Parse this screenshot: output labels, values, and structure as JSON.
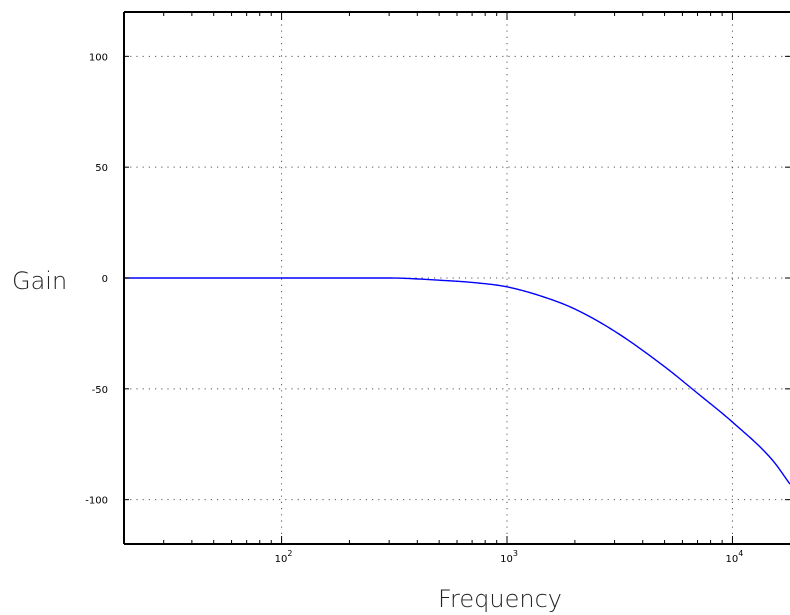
{
  "chart_data": {
    "type": "line",
    "xlabel": "Frequency",
    "ylabel": "Gain",
    "xscale": "log",
    "xlim": [
      20,
      18000
    ],
    "ylim": [
      -120,
      120
    ],
    "grid": true,
    "grid_style": "dotted",
    "yticks": [
      {
        "value": -100,
        "label": "-100"
      },
      {
        "value": -50,
        "label": "-50"
      },
      {
        "value": 0,
        "label": "0"
      },
      {
        "value": 50,
        "label": "50"
      },
      {
        "value": 100,
        "label": "100"
      }
    ],
    "xticks": [
      {
        "value": 100,
        "base": "10",
        "exp": "2"
      },
      {
        "value": 1000,
        "base": "10",
        "exp": "3"
      },
      {
        "value": 10000,
        "base": "10",
        "exp": "4"
      }
    ],
    "series": [
      {
        "color": "#0000ff",
        "x": [
          20,
          50,
          100,
          200,
          300,
          500,
          700,
          1000,
          1500,
          2000,
          3000,
          5000,
          7000,
          10000,
          15000,
          18000
        ],
        "y": [
          0,
          0,
          0,
          0,
          0,
          -1,
          -2,
          -4,
          -9,
          -14,
          -24,
          -40,
          -52,
          -65,
          -82,
          -93
        ]
      }
    ]
  }
}
